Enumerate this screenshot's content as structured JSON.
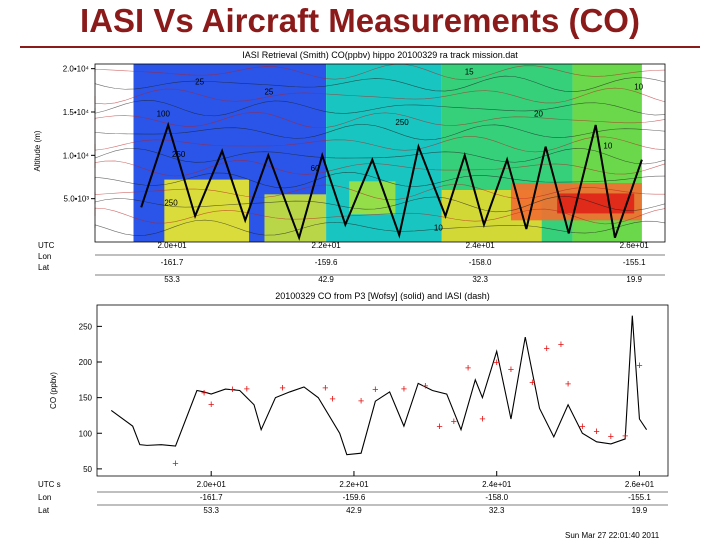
{
  "slide": {
    "title": "IASI Vs Aircraft Measurements (CO)"
  },
  "footer": {
    "stamp": "Sun Mar 27 22:01:40 2011"
  },
  "chart_data": [
    {
      "type": "heatmap",
      "title": "IASI Retrieval (Smith) CO(ppbv) hippo  20100329  ra  track  mission.dat",
      "ylabel": "Altitude (m)",
      "ylim": [
        0,
        21000
      ],
      "yticks": [
        {
          "v": 5000,
          "label": "5.0•10³"
        },
        {
          "v": 10000,
          "label": "1.0•10⁴"
        },
        {
          "v": 15000,
          "label": "1.5•10⁴"
        },
        {
          "v": 20000,
          "label": "2.0•10⁴"
        }
      ],
      "xlim": [
        19.6,
        27.0
      ],
      "bands": [
        {
          "x0": 19.6,
          "x1": 20.1,
          "color": "#ffffff"
        },
        {
          "x0": 20.1,
          "x1": 22.6,
          "color": "#2a55e8"
        },
        {
          "x0": 22.6,
          "x1": 24.1,
          "color": "#19c5c0"
        },
        {
          "x0": 24.1,
          "x1": 25.8,
          "color": "#36d07a"
        },
        {
          "x0": 25.8,
          "x1": 26.7,
          "color": "#6ad84a"
        }
      ],
      "patches": [
        {
          "x0": 20.5,
          "x1": 21.6,
          "y0": 0,
          "y1": 7200,
          "color": "#e8e82a"
        },
        {
          "x0": 21.8,
          "x1": 22.6,
          "y0": 0,
          "y1": 5500,
          "color": "#c6e23a"
        },
        {
          "x0": 22.9,
          "x1": 23.5,
          "y0": 3200,
          "y1": 7000,
          "color": "#9ee040"
        },
        {
          "x0": 24.1,
          "x1": 25.4,
          "y0": 0,
          "y1": 6000,
          "color": "#e0d830"
        },
        {
          "x0": 25.0,
          "x1": 26.7,
          "y0": 2500,
          "y1": 6800,
          "color": "#f07030"
        },
        {
          "x0": 25.6,
          "x1": 26.6,
          "y0": 3300,
          "y1": 5600,
          "color": "#e02418"
        }
      ],
      "contour_labels": [
        {
          "x": 20.9,
          "y": 18200,
          "text": "25"
        },
        {
          "x": 21.8,
          "y": 17000,
          "text": "25"
        },
        {
          "x": 20.4,
          "y": 14500,
          "text": "100"
        },
        {
          "x": 20.6,
          "y": 9800,
          "text": "250"
        },
        {
          "x": 22.4,
          "y": 8200,
          "text": "60"
        },
        {
          "x": 23.5,
          "y": 13500,
          "text": "250"
        },
        {
          "x": 24.4,
          "y": 19300,
          "text": "15"
        },
        {
          "x": 25.3,
          "y": 14500,
          "text": "20"
        },
        {
          "x": 26.2,
          "y": 10800,
          "text": "10"
        },
        {
          "x": 24.0,
          "y": 1300,
          "text": "10"
        },
        {
          "x": 20.5,
          "y": 4200,
          "text": "250"
        },
        {
          "x": 26.6,
          "y": 17600,
          "text": "10"
        }
      ],
      "flight_track": {
        "x": [
          20.2,
          20.55,
          20.9,
          21.25,
          21.55,
          21.85,
          22.25,
          22.55,
          22.85,
          23.2,
          23.55,
          23.8,
          24.15,
          24.4,
          24.65,
          24.95,
          25.2,
          25.45,
          25.75,
          26.1,
          26.35,
          26.7
        ],
        "y": [
          4000,
          13500,
          3000,
          10500,
          2500,
          10000,
          500,
          10000,
          2000,
          9500,
          800,
          11000,
          3000,
          10000,
          2000,
          9500,
          1500,
          11000,
          1000,
          13500,
          500,
          9500
        ]
      },
      "row_labels": [
        "UTC",
        "Lon",
        "Lat"
      ],
      "ticks": [
        {
          "x": 20.6,
          "utc": "2.0e+01",
          "lon": "-161.7",
          "lat": "53.3"
        },
        {
          "x": 22.6,
          "utc": "2.2e+01",
          "lon": "-159.6",
          "lat": "42.9"
        },
        {
          "x": 24.6,
          "utc": "2.4e+01",
          "lon": "-158.0",
          "lat": "32.3"
        },
        {
          "x": 26.6,
          "utc": "2.6e+01",
          "lon": "-155.1",
          "lat": "19.9"
        }
      ]
    },
    {
      "type": "line",
      "title": "20100329 CO from P3 [Wofsy] (solid) and IASI (dash)",
      "ylabel": "CO (ppbv)",
      "ylim": [
        40,
        280
      ],
      "xlim": [
        19.0,
        27.0
      ],
      "yticks": [
        50,
        100,
        150,
        200,
        250
      ],
      "series": [
        {
          "name": "P3 (solid)",
          "x": [
            19.2,
            19.5,
            19.6,
            19.7,
            19.9,
            20.1,
            20.4,
            20.5,
            20.6,
            20.8,
            21.0,
            21.2,
            21.3,
            21.5,
            21.7,
            21.9,
            22.1,
            22.4,
            22.5,
            22.7,
            22.9,
            23.1,
            23.3,
            23.5,
            23.7,
            23.9,
            24.1,
            24.3,
            24.4,
            24.6,
            24.8,
            25.0,
            25.2,
            25.4,
            25.6,
            25.8,
            26.0,
            26.2,
            26.4,
            26.5,
            26.6,
            26.7
          ],
          "y": [
            132,
            110,
            84,
            83,
            84,
            82,
            160,
            158,
            155,
            162,
            160,
            140,
            105,
            150,
            158,
            165,
            150,
            100,
            70,
            72,
            145,
            158,
            110,
            170,
            160,
            155,
            105,
            175,
            150,
            215,
            120,
            235,
            135,
            95,
            140,
            100,
            88,
            85,
            92,
            265,
            120,
            105
          ]
        },
        {
          "name": "IASI (dash)",
          "x": [
            20.1,
            20.5,
            20.6,
            20.9,
            21.1,
            21.6,
            22.2,
            22.3,
            22.7,
            22.9,
            23.3,
            23.6,
            23.8,
            24.0,
            24.2,
            24.4,
            24.6,
            24.8,
            25.1,
            25.3,
            25.5,
            25.6,
            25.8,
            26.0,
            26.2,
            26.4,
            26.6
          ],
          "y": [
            58,
            157,
            141,
            162,
            163,
            164,
            164,
            149,
            146,
            162,
            163,
            167,
            110,
            117,
            192,
            121,
            200,
            190,
            172,
            220,
            225,
            170,
            110,
            103,
            96,
            97,
            196
          ]
        }
      ],
      "row_labels": [
        "UTC s",
        "Lon",
        "Lat"
      ],
      "ticks": [
        {
          "x": 20.6,
          "utc": "2.0e+01",
          "lon": "-161.7",
          "lat": "53.3"
        },
        {
          "x": 22.6,
          "utc": "2.2e+01",
          "lon": "-159.6",
          "lat": "42.9"
        },
        {
          "x": 24.6,
          "utc": "2.4e+01",
          "lon": "-158.0",
          "lat": "32.3"
        },
        {
          "x": 26.6,
          "utc": "2.6e+01",
          "lon": "-155.1",
          "lat": "19.9"
        }
      ]
    }
  ]
}
